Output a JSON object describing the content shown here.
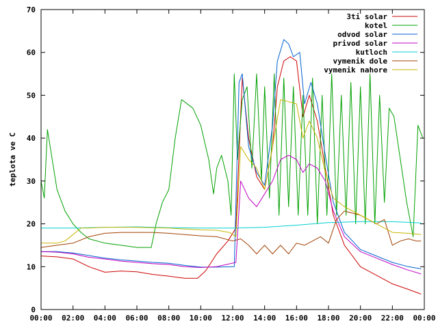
{
  "chart_data": {
    "type": "line",
    "title": "",
    "xlabel": "",
    "ylabel": "teplota ve C",
    "ylim": [
      0,
      70
    ],
    "xlim": [
      0,
      24
    ],
    "x_ticks": [
      "00:00",
      "02:00",
      "04:00",
      "06:00",
      "08:00",
      "10:00",
      "12:00",
      "14:00",
      "16:00",
      "18:00",
      "20:00",
      "22:00",
      "00:00"
    ],
    "y_ticks": [
      0,
      10,
      20,
      30,
      40,
      50,
      60,
      70
    ],
    "grid": false,
    "legend_position": "top-right",
    "series": [
      {
        "name": "3ti solar",
        "color": "#cc0000",
        "points": [
          [
            0,
            12.5
          ],
          [
            1,
            12.3
          ],
          [
            2,
            11.8
          ],
          [
            3,
            10
          ],
          [
            4,
            8.7
          ],
          [
            5,
            9
          ],
          [
            6,
            8.8
          ],
          [
            7,
            8.2
          ],
          [
            8,
            7.8
          ],
          [
            9,
            7.3
          ],
          [
            9.8,
            7.3
          ],
          [
            10.3,
            9
          ],
          [
            11,
            13
          ],
          [
            11.7,
            16
          ],
          [
            12.2,
            19
          ],
          [
            12.6,
            54
          ],
          [
            13,
            40
          ],
          [
            13.5,
            31
          ],
          [
            14,
            28
          ],
          [
            14.5,
            38
          ],
          [
            14.8,
            52
          ],
          [
            15.2,
            58
          ],
          [
            15.6,
            59
          ],
          [
            16,
            58
          ],
          [
            16.4,
            45
          ],
          [
            16.8,
            50
          ],
          [
            17.3,
            44
          ],
          [
            17.8,
            33
          ],
          [
            18.3,
            22
          ],
          [
            19,
            15
          ],
          [
            20,
            10
          ],
          [
            21,
            8
          ],
          [
            22,
            6
          ],
          [
            23,
            4.7
          ],
          [
            23.8,
            3.6
          ]
        ]
      },
      {
        "name": "kotel",
        "color": "#00a000",
        "points": [
          [
            0,
            30
          ],
          [
            0.2,
            26
          ],
          [
            0.4,
            42
          ],
          [
            0.7,
            35
          ],
          [
            1,
            28
          ],
          [
            1.5,
            23
          ],
          [
            2,
            20
          ],
          [
            2.5,
            18
          ],
          [
            3,
            16.5
          ],
          [
            4,
            15.5
          ],
          [
            5,
            15
          ],
          [
            6,
            14.5
          ],
          [
            6.9,
            14.5
          ],
          [
            7.2,
            20
          ],
          [
            7.6,
            25
          ],
          [
            8,
            28
          ],
          [
            8.4,
            40
          ],
          [
            8.8,
            49
          ],
          [
            9.5,
            47
          ],
          [
            10,
            43
          ],
          [
            10.5,
            35
          ],
          [
            10.8,
            27
          ],
          [
            11,
            33
          ],
          [
            11.3,
            36
          ],
          [
            11.7,
            30
          ],
          [
            11.9,
            22
          ],
          [
            12.1,
            55
          ],
          [
            12.3,
            35
          ],
          [
            12.6,
            49
          ],
          [
            12.9,
            52
          ],
          [
            13.2,
            33
          ],
          [
            13.5,
            55
          ],
          [
            13.8,
            30
          ],
          [
            14,
            52
          ],
          [
            14.3,
            26
          ],
          [
            14.6,
            55
          ],
          [
            14.9,
            22
          ],
          [
            15.2,
            54
          ],
          [
            15.5,
            24
          ],
          [
            15.8,
            52
          ],
          [
            16.1,
            22
          ],
          [
            16.4,
            50
          ],
          [
            16.7,
            22
          ],
          [
            17,
            54
          ],
          [
            17.3,
            20
          ],
          [
            17.6,
            50
          ],
          [
            17.9,
            22
          ],
          [
            18.2,
            55
          ],
          [
            18.5,
            22
          ],
          [
            18.8,
            50
          ],
          [
            19.1,
            22
          ],
          [
            19.4,
            53
          ],
          [
            19.7,
            20
          ],
          [
            20,
            52
          ],
          [
            20.3,
            20
          ],
          [
            20.6,
            55
          ],
          [
            20.9,
            20
          ],
          [
            21.2,
            50
          ],
          [
            21.5,
            25
          ],
          [
            21.8,
            47
          ],
          [
            22.1,
            45
          ],
          [
            22.5,
            35
          ],
          [
            22.9,
            25
          ],
          [
            23.3,
            17
          ],
          [
            23.6,
            43
          ],
          [
            23.9,
            40
          ]
        ]
      },
      {
        "name": "odvod solar",
        "color": "#0060d0",
        "points": [
          [
            0,
            13.5
          ],
          [
            1,
            13.5
          ],
          [
            2,
            13.2
          ],
          [
            3,
            12.6
          ],
          [
            4,
            12
          ],
          [
            5,
            11.6
          ],
          [
            6,
            11.3
          ],
          [
            7,
            11
          ],
          [
            8,
            10.8
          ],
          [
            9,
            10.3
          ],
          [
            10,
            9.9
          ],
          [
            11,
            9.9
          ],
          [
            12.1,
            10
          ],
          [
            12.4,
            53
          ],
          [
            12.6,
            55
          ],
          [
            13,
            38
          ],
          [
            13.5,
            32
          ],
          [
            14,
            29
          ],
          [
            14.5,
            43
          ],
          [
            14.8,
            58
          ],
          [
            15.2,
            63
          ],
          [
            15.5,
            62
          ],
          [
            15.8,
            59
          ],
          [
            16.2,
            60
          ],
          [
            16.5,
            48
          ],
          [
            16.9,
            53
          ],
          [
            17.3,
            48
          ],
          [
            17.8,
            36
          ],
          [
            18.3,
            25
          ],
          [
            19,
            18
          ],
          [
            20,
            14
          ],
          [
            21,
            12.5
          ],
          [
            22,
            11
          ],
          [
            23,
            10
          ],
          [
            23.8,
            9.5
          ]
        ]
      },
      {
        "name": "privod solar",
        "color": "#c000c0",
        "points": [
          [
            0,
            13.5
          ],
          [
            1,
            13.4
          ],
          [
            2,
            13
          ],
          [
            3,
            12.2
          ],
          [
            4,
            11.8
          ],
          [
            5,
            11.3
          ],
          [
            6,
            11
          ],
          [
            7,
            10.7
          ],
          [
            8,
            10.5
          ],
          [
            9,
            10
          ],
          [
            10,
            9.8
          ],
          [
            11,
            10
          ],
          [
            12.2,
            11
          ],
          [
            12.5,
            30
          ],
          [
            13,
            26
          ],
          [
            13.5,
            24
          ],
          [
            14,
            27
          ],
          [
            14.5,
            30
          ],
          [
            15,
            35
          ],
          [
            15.5,
            36
          ],
          [
            16,
            35
          ],
          [
            16.4,
            32
          ],
          [
            16.8,
            34
          ],
          [
            17.3,
            33
          ],
          [
            17.8,
            30
          ],
          [
            18.3,
            23
          ],
          [
            19,
            17
          ],
          [
            20,
            13.5
          ],
          [
            21,
            12
          ],
          [
            22,
            10.5
          ],
          [
            23,
            9.2
          ],
          [
            23.8,
            8.3
          ]
        ]
      },
      {
        "name": "kutloch",
        "color": "#00d0d0",
        "points": [
          [
            0,
            19
          ],
          [
            2,
            19
          ],
          [
            4,
            19.2
          ],
          [
            6,
            19.3
          ],
          [
            8,
            19.1
          ],
          [
            10,
            19
          ],
          [
            12,
            19
          ],
          [
            14,
            19.2
          ],
          [
            16,
            19.7
          ],
          [
            18,
            20.3
          ],
          [
            20,
            20.5
          ],
          [
            22,
            20.5
          ],
          [
            23.8,
            20.2
          ]
        ]
      },
      {
        "name": "vymenik dole",
        "color": "#a04000",
        "points": [
          [
            0,
            14.5
          ],
          [
            1,
            15
          ],
          [
            2,
            15.5
          ],
          [
            3,
            17
          ],
          [
            4,
            17.8
          ],
          [
            5,
            18
          ],
          [
            6,
            18
          ],
          [
            7,
            18
          ],
          [
            8,
            17.8
          ],
          [
            9,
            17.5
          ],
          [
            10,
            17.2
          ],
          [
            11,
            17
          ],
          [
            12,
            16
          ],
          [
            12.5,
            16.5
          ],
          [
            13,
            15
          ],
          [
            13.5,
            13
          ],
          [
            14,
            15
          ],
          [
            14.5,
            13
          ],
          [
            15,
            15
          ],
          [
            15.5,
            13
          ],
          [
            16,
            15.5
          ],
          [
            16.5,
            15
          ],
          [
            17,
            16
          ],
          [
            17.5,
            17
          ],
          [
            18,
            15.5
          ],
          [
            18.5,
            21
          ],
          [
            19,
            23
          ],
          [
            19.5,
            22.5
          ],
          [
            20,
            22
          ],
          [
            20.5,
            21
          ],
          [
            21,
            20
          ],
          [
            21.5,
            21
          ],
          [
            22,
            15
          ],
          [
            22.5,
            16
          ],
          [
            23,
            16.5
          ],
          [
            23.5,
            16
          ],
          [
            23.8,
            16
          ]
        ]
      },
      {
        "name": "vymenik nahore",
        "color": "#c8b400",
        "points": [
          [
            0,
            15.5
          ],
          [
            1,
            15.5
          ],
          [
            1.5,
            16
          ],
          [
            2,
            17.5
          ],
          [
            2.5,
            19
          ],
          [
            3,
            19
          ],
          [
            4,
            19.2
          ],
          [
            5,
            19.2
          ],
          [
            6,
            19.2
          ],
          [
            7,
            19.1
          ],
          [
            8,
            19
          ],
          [
            9,
            18.8
          ],
          [
            10,
            18.6
          ],
          [
            11,
            18.5
          ],
          [
            11.8,
            18
          ],
          [
            12.2,
            17
          ],
          [
            12.5,
            38
          ],
          [
            13,
            35
          ],
          [
            13.5,
            33
          ],
          [
            14,
            28
          ],
          [
            14.5,
            38
          ],
          [
            15,
            49
          ],
          [
            15.5,
            48.5
          ],
          [
            16,
            48
          ],
          [
            16.4,
            40
          ],
          [
            16.8,
            44
          ],
          [
            17.3,
            40
          ],
          [
            17.8,
            32
          ],
          [
            18.3,
            26
          ],
          [
            19,
            24
          ],
          [
            20,
            22
          ],
          [
            21,
            20
          ],
          [
            22,
            18
          ],
          [
            23,
            17.8
          ],
          [
            23.8,
            17.5
          ]
        ]
      }
    ]
  }
}
